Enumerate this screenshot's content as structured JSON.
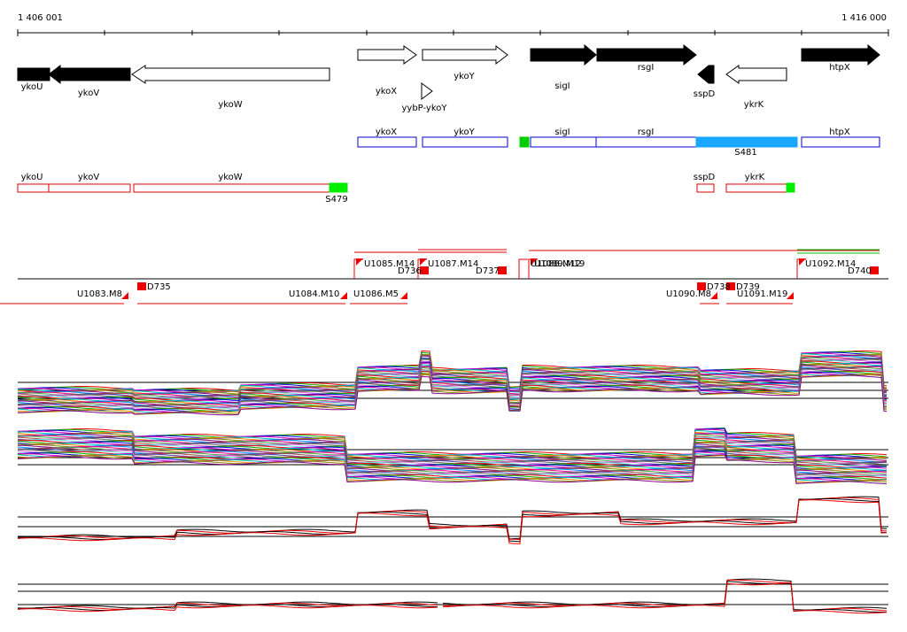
{
  "ruler": {
    "start": "1 406 001",
    "end": "1 416 000"
  },
  "genes": [
    "ykoU",
    "ykoV",
    "ykoW",
    "ykoX",
    "ykoY",
    "yybP-ykoY",
    "sigI",
    "rsgI",
    "sspD",
    "ykrK",
    "htpX"
  ],
  "features_blue": [
    "ykoX",
    "ykoY",
    "sigI",
    "rsgI",
    "htpX",
    "S481"
  ],
  "features_red": [
    "ykoU",
    "ykoV",
    "ykoW",
    "S479",
    "sspD",
    "ykrK"
  ],
  "transcripts": [
    "U1085.M14",
    "U1087.M14",
    "U1088.M12",
    "U1089.M19",
    "U1092.M14",
    "D736",
    "D737",
    "D740",
    "U1083.M8",
    "D735",
    "U1084.M10",
    "U1086.M5",
    "U1090.M8",
    "D738",
    "D739",
    "U1091.M19"
  ]
}
